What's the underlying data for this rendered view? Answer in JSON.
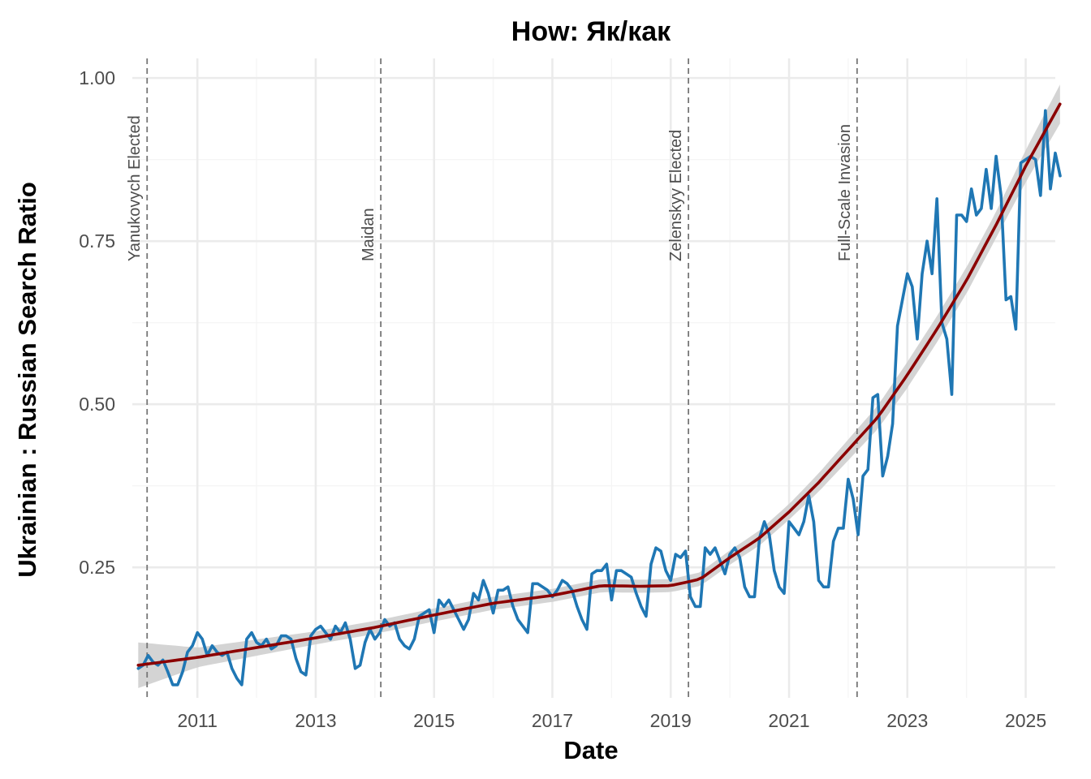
{
  "chart_data": {
    "type": "line",
    "title": "How: Як/как",
    "xlabel": "Date",
    "ylabel": "Ukrainian : Russian Search Ratio",
    "xlim": [
      2009.9,
      2025.5
    ],
    "ylim": [
      0.05,
      1.03
    ],
    "x_ticks": [
      2011,
      2013,
      2015,
      2017,
      2019,
      2021,
      2023,
      2025
    ],
    "x_tick_labels": [
      "2011",
      "2013",
      "2015",
      "2017",
      "2019",
      "2021",
      "2023",
      "2025"
    ],
    "y_ticks": [
      0.25,
      0.5,
      0.75,
      1.0
    ],
    "y_tick_labels": [
      "0.25",
      "0.50",
      "0.75",
      "1.00"
    ],
    "grid": true,
    "colors": {
      "series": "#1f77b4",
      "trend": "#8b0000",
      "band": "#cccccc",
      "event_line": "#777777",
      "grid": "#ebebeb"
    },
    "events": [
      {
        "date": 2010.15,
        "label": "Yanukovych Elected"
      },
      {
        "date": 2014.1,
        "label": "Maidan"
      },
      {
        "date": 2019.3,
        "label": "Zelenskyy Elected"
      },
      {
        "date": 2022.15,
        "label": "Full-Scale Invasion"
      }
    ],
    "series": [
      {
        "values": [
          [
            2010.0,
            0.095
          ],
          [
            2010.083,
            0.1
          ],
          [
            2010.167,
            0.115
          ],
          [
            2010.25,
            0.105
          ],
          [
            2010.333,
            0.1
          ],
          [
            2010.417,
            0.108
          ],
          [
            2010.5,
            0.09
          ],
          [
            2010.583,
            0.07
          ],
          [
            2010.667,
            0.07
          ],
          [
            2010.75,
            0.09
          ],
          [
            2010.833,
            0.12
          ],
          [
            2010.917,
            0.13
          ],
          [
            2011.0,
            0.15
          ],
          [
            2011.083,
            0.14
          ],
          [
            2011.167,
            0.115
          ],
          [
            2011.25,
            0.13
          ],
          [
            2011.333,
            0.12
          ],
          [
            2011.417,
            0.115
          ],
          [
            2011.5,
            0.12
          ],
          [
            2011.583,
            0.095
          ],
          [
            2011.667,
            0.08
          ],
          [
            2011.75,
            0.07
          ],
          [
            2011.833,
            0.14
          ],
          [
            2011.917,
            0.15
          ],
          [
            2012.0,
            0.135
          ],
          [
            2012.083,
            0.13
          ],
          [
            2012.167,
            0.14
          ],
          [
            2012.25,
            0.125
          ],
          [
            2012.333,
            0.13
          ],
          [
            2012.417,
            0.145
          ],
          [
            2012.5,
            0.145
          ],
          [
            2012.583,
            0.14
          ],
          [
            2012.667,
            0.11
          ],
          [
            2012.75,
            0.09
          ],
          [
            2012.833,
            0.085
          ],
          [
            2012.917,
            0.145
          ],
          [
            2013.0,
            0.155
          ],
          [
            2013.083,
            0.16
          ],
          [
            2013.167,
            0.15
          ],
          [
            2013.25,
            0.14
          ],
          [
            2013.333,
            0.16
          ],
          [
            2013.417,
            0.15
          ],
          [
            2013.5,
            0.165
          ],
          [
            2013.583,
            0.14
          ],
          [
            2013.667,
            0.095
          ],
          [
            2013.75,
            0.1
          ],
          [
            2013.833,
            0.135
          ],
          [
            2013.917,
            0.155
          ],
          [
            2014.0,
            0.14
          ],
          [
            2014.083,
            0.15
          ],
          [
            2014.167,
            0.17
          ],
          [
            2014.25,
            0.16
          ],
          [
            2014.333,
            0.165
          ],
          [
            2014.417,
            0.14
          ],
          [
            2014.5,
            0.13
          ],
          [
            2014.583,
            0.125
          ],
          [
            2014.667,
            0.14
          ],
          [
            2014.75,
            0.175
          ],
          [
            2014.833,
            0.18
          ],
          [
            2014.917,
            0.185
          ],
          [
            2015.0,
            0.15
          ],
          [
            2015.083,
            0.2
          ],
          [
            2015.167,
            0.19
          ],
          [
            2015.25,
            0.2
          ],
          [
            2015.333,
            0.185
          ],
          [
            2015.417,
            0.17
          ],
          [
            2015.5,
            0.155
          ],
          [
            2015.583,
            0.17
          ],
          [
            2015.667,
            0.21
          ],
          [
            2015.75,
            0.2
          ],
          [
            2015.833,
            0.23
          ],
          [
            2015.917,
            0.21
          ],
          [
            2016.0,
            0.18
          ],
          [
            2016.083,
            0.215
          ],
          [
            2016.167,
            0.215
          ],
          [
            2016.25,
            0.22
          ],
          [
            2016.333,
            0.19
          ],
          [
            2016.417,
            0.17
          ],
          [
            2016.5,
            0.16
          ],
          [
            2016.583,
            0.15
          ],
          [
            2016.667,
            0.225
          ],
          [
            2016.75,
            0.225
          ],
          [
            2016.833,
            0.22
          ],
          [
            2016.917,
            0.215
          ],
          [
            2017.0,
            0.205
          ],
          [
            2017.083,
            0.215
          ],
          [
            2017.167,
            0.23
          ],
          [
            2017.25,
            0.225
          ],
          [
            2017.333,
            0.215
          ],
          [
            2017.417,
            0.19
          ],
          [
            2017.5,
            0.17
          ],
          [
            2017.583,
            0.155
          ],
          [
            2017.667,
            0.24
          ],
          [
            2017.75,
            0.245
          ],
          [
            2017.833,
            0.245
          ],
          [
            2017.917,
            0.255
          ],
          [
            2018.0,
            0.2
          ],
          [
            2018.083,
            0.245
          ],
          [
            2018.167,
            0.245
          ],
          [
            2018.25,
            0.24
          ],
          [
            2018.333,
            0.235
          ],
          [
            2018.417,
            0.21
          ],
          [
            2018.5,
            0.19
          ],
          [
            2018.583,
            0.175
          ],
          [
            2018.667,
            0.255
          ],
          [
            2018.75,
            0.28
          ],
          [
            2018.833,
            0.275
          ],
          [
            2018.917,
            0.245
          ],
          [
            2019.0,
            0.23
          ],
          [
            2019.083,
            0.27
          ],
          [
            2019.167,
            0.265
          ],
          [
            2019.25,
            0.275
          ],
          [
            2019.333,
            0.205
          ],
          [
            2019.417,
            0.19
          ],
          [
            2019.5,
            0.19
          ],
          [
            2019.583,
            0.28
          ],
          [
            2019.667,
            0.27
          ],
          [
            2019.75,
            0.28
          ],
          [
            2019.833,
            0.26
          ],
          [
            2019.917,
            0.24
          ],
          [
            2020.0,
            0.27
          ],
          [
            2020.083,
            0.28
          ],
          [
            2020.167,
            0.265
          ],
          [
            2020.25,
            0.22
          ],
          [
            2020.333,
            0.205
          ],
          [
            2020.417,
            0.205
          ],
          [
            2020.5,
            0.295
          ],
          [
            2020.583,
            0.32
          ],
          [
            2020.667,
            0.3
          ],
          [
            2020.75,
            0.245
          ],
          [
            2020.833,
            0.22
          ],
          [
            2020.917,
            0.21
          ],
          [
            2021.0,
            0.32
          ],
          [
            2021.083,
            0.31
          ],
          [
            2021.167,
            0.3
          ],
          [
            2021.25,
            0.32
          ],
          [
            2021.333,
            0.36
          ],
          [
            2021.417,
            0.32
          ],
          [
            2021.5,
            0.23
          ],
          [
            2021.583,
            0.22
          ],
          [
            2021.667,
            0.22
          ],
          [
            2021.75,
            0.29
          ],
          [
            2021.833,
            0.31
          ],
          [
            2021.917,
            0.31
          ],
          [
            2022.0,
            0.385
          ],
          [
            2022.083,
            0.355
          ],
          [
            2022.167,
            0.3
          ],
          [
            2022.25,
            0.39
          ],
          [
            2022.333,
            0.4
          ],
          [
            2022.417,
            0.51
          ],
          [
            2022.5,
            0.515
          ],
          [
            2022.583,
            0.39
          ],
          [
            2022.667,
            0.42
          ],
          [
            2022.75,
            0.47
          ],
          [
            2022.833,
            0.62
          ],
          [
            2022.917,
            0.66
          ],
          [
            2023.0,
            0.7
          ],
          [
            2023.083,
            0.68
          ],
          [
            2023.167,
            0.6
          ],
          [
            2023.25,
            0.7
          ],
          [
            2023.333,
            0.75
          ],
          [
            2023.417,
            0.7
          ],
          [
            2023.5,
            0.815
          ],
          [
            2023.583,
            0.625
          ],
          [
            2023.667,
            0.6
          ],
          [
            2023.75,
            0.515
          ],
          [
            2023.833,
            0.79
          ],
          [
            2023.917,
            0.79
          ],
          [
            2024.0,
            0.78
          ],
          [
            2024.083,
            0.83
          ],
          [
            2024.167,
            0.79
          ],
          [
            2024.25,
            0.8
          ],
          [
            2024.333,
            0.86
          ],
          [
            2024.417,
            0.8
          ],
          [
            2024.5,
            0.88
          ],
          [
            2024.583,
            0.82
          ],
          [
            2024.667,
            0.66
          ],
          [
            2024.75,
            0.665
          ],
          [
            2024.833,
            0.615
          ],
          [
            2024.917,
            0.87
          ],
          [
            2025.0,
            0.875
          ],
          [
            2025.083,
            0.88
          ],
          [
            2025.167,
            0.875
          ],
          [
            2025.25,
            0.82
          ],
          [
            2025.333,
            0.95
          ],
          [
            2025.417,
            0.83
          ],
          [
            2025.5,
            0.885
          ],
          [
            2025.583,
            0.85
          ]
        ]
      },
      {
        "values": [
          [
            2010.0,
            0.1
          ],
          [
            2011.0,
            0.112
          ],
          [
            2012.0,
            0.127
          ],
          [
            2013.0,
            0.142
          ],
          [
            2014.0,
            0.158
          ],
          [
            2015.0,
            0.177
          ],
          [
            2016.0,
            0.195
          ],
          [
            2017.0,
            0.207
          ],
          [
            2017.833,
            0.222
          ],
          [
            2018.5,
            0.221
          ],
          [
            2019.0,
            0.222
          ],
          [
            2019.5,
            0.232
          ],
          [
            2020.0,
            0.265
          ],
          [
            2020.5,
            0.295
          ],
          [
            2021.0,
            0.335
          ],
          [
            2021.5,
            0.38
          ],
          [
            2022.0,
            0.43
          ],
          [
            2022.5,
            0.48
          ],
          [
            2023.0,
            0.545
          ],
          [
            2023.5,
            0.615
          ],
          [
            2024.0,
            0.69
          ],
          [
            2024.5,
            0.775
          ],
          [
            2025.0,
            0.865
          ],
          [
            2025.58,
            0.96
          ]
        ]
      }
    ],
    "band_halfwidth": [
      [
        2010.0,
        0.035
      ],
      [
        2011.0,
        0.015
      ],
      [
        2013.0,
        0.01
      ],
      [
        2017.0,
        0.01
      ],
      [
        2019.0,
        0.01
      ],
      [
        2021.0,
        0.012
      ],
      [
        2023.0,
        0.02
      ],
      [
        2024.5,
        0.02
      ],
      [
        2025.58,
        0.03
      ]
    ]
  }
}
